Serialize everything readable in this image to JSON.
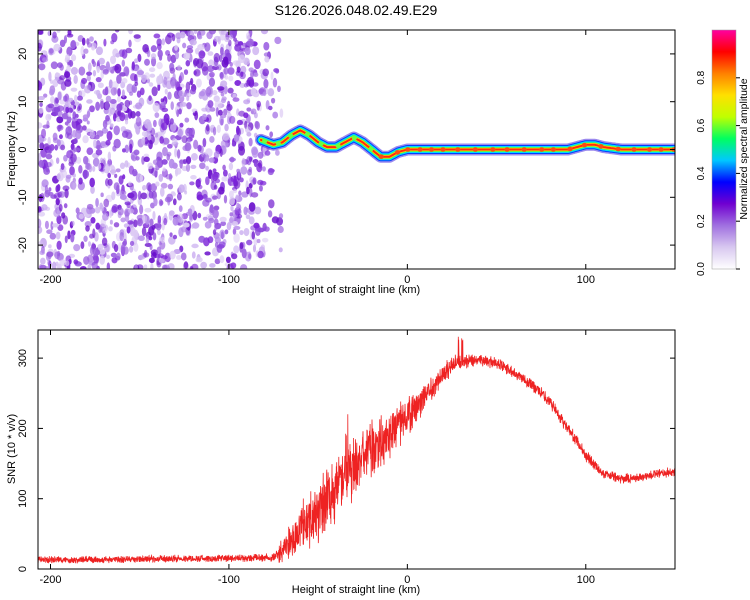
{
  "title": "S126.2026.048.02.49.E29",
  "chart_data": [
    {
      "type": "heatmap",
      "name": "spectrogram",
      "xlabel": "Height of straight line (km)",
      "ylabel": "Frequency (Hz)",
      "xlim": [
        -207,
        150
      ],
      "ylim": [
        -25,
        25
      ],
      "xticks": [
        -200,
        -100,
        0,
        100
      ],
      "yticks": [
        -20,
        -10,
        0,
        10,
        20
      ],
      "noise_region_x": [
        -207,
        -75
      ],
      "signal_track": {
        "x": [
          -82,
          -75,
          -70,
          -65,
          -60,
          -55,
          -50,
          -45,
          -40,
          -35,
          -30,
          -25,
          -20,
          -15,
          -10,
          -5,
          0,
          10,
          20,
          40,
          60,
          80,
          90,
          95,
          100,
          105,
          110,
          120,
          130,
          140,
          150
        ],
        "y": [
          2.0,
          1.0,
          1.5,
          3.0,
          4.0,
          3.0,
          1.5,
          0.5,
          0.5,
          1.5,
          2.5,
          1.5,
          0.0,
          -1.5,
          -1.5,
          -0.5,
          0.0,
          0.0,
          0.0,
          0.0,
          0.0,
          0.0,
          0.0,
          0.5,
          1.0,
          1.0,
          0.5,
          0.0,
          0.0,
          0.0,
          0.0
        ]
      },
      "colorbar": {
        "label": "Normalized spectral amplitude",
        "ticks": [
          "0.0",
          "0.2",
          "0.4",
          "0.6",
          "0.8"
        ],
        "range": [
          0,
          1
        ],
        "colors": [
          "#ffffff",
          "#d8c8f0",
          "#a070e0",
          "#7000d0",
          "#0000ff",
          "#00c8ff",
          "#00ff60",
          "#c0ff00",
          "#ffe000",
          "#ff8000",
          "#ff0000",
          "#ff00a0"
        ]
      }
    },
    {
      "type": "line",
      "name": "snr",
      "xlabel": "Height of straight line (km)",
      "ylabel": "SNR (10 * v/v)",
      "xlim": [
        -207,
        150
      ],
      "ylim": [
        0,
        340
      ],
      "xticks": [
        -200,
        -100,
        0,
        100
      ],
      "yticks": [
        0,
        100,
        200,
        300
      ],
      "color": "#ee2222",
      "series": [
        {
          "name": "SNR",
          "x": [
            -207,
            -180,
            -150,
            -120,
            -90,
            -75,
            -70,
            -65,
            -60,
            -55,
            -50,
            -45,
            -40,
            -35,
            -30,
            -25,
            -20,
            -15,
            -10,
            -5,
            0,
            5,
            10,
            15,
            20,
            25,
            30,
            35,
            40,
            45,
            50,
            60,
            70,
            80,
            90,
            100,
            110,
            120,
            130,
            140,
            150
          ],
          "y": [
            13,
            13,
            14,
            15,
            15,
            17,
            25,
            40,
            55,
            70,
            85,
            100,
            115,
            130,
            145,
            158,
            170,
            180,
            192,
            205,
            215,
            230,
            245,
            262,
            278,
            290,
            295,
            297,
            298,
            296,
            292,
            280,
            262,
            238,
            200,
            162,
            135,
            128,
            130,
            135,
            138
          ],
          "noise_amplitude": [
            6,
            6,
            6,
            6,
            6,
            8,
            20,
            30,
            38,
            45,
            50,
            55,
            55,
            55,
            50,
            48,
            45,
            40,
            38,
            34,
            30,
            26,
            22,
            20,
            18,
            16,
            14,
            12,
            10,
            10,
            10,
            10,
            10,
            10,
            10,
            10,
            8,
            8,
            8,
            8,
            8
          ]
        }
      ]
    }
  ]
}
